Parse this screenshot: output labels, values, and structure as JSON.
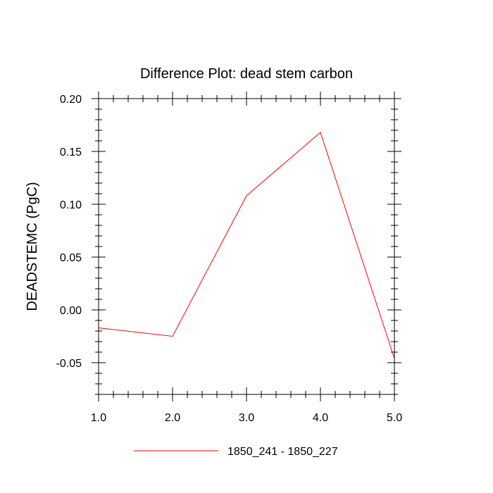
{
  "chart_data": {
    "type": "line",
    "title": "Difference Plot: dead stem carbon",
    "xlabel": "",
    "ylabel": "DEADSTEMC  (PgC)",
    "xlim": [
      1.0,
      5.0
    ],
    "ylim": [
      -0.08,
      0.2
    ],
    "x_ticks": [
      1.0,
      2.0,
      3.0,
      4.0,
      5.0
    ],
    "x_tick_labels": [
      "1.0",
      "2.0",
      "3.0",
      "4.0",
      "5.0"
    ],
    "y_ticks": [
      -0.05,
      0.0,
      0.05,
      0.1,
      0.15,
      0.2
    ],
    "y_tick_labels": [
      "-0.05",
      "0.00",
      "0.05",
      "0.10",
      "0.15",
      "0.20"
    ],
    "y_minor_step": 0.01,
    "x_minor_step": 0.2,
    "grid": false,
    "legend_position": "bottom-center",
    "series": [
      {
        "name": "1850_241 - 1850_227",
        "color": "#ff0000",
        "x": [
          1.0,
          2.0,
          3.0,
          4.0,
          5.0
        ],
        "values": [
          -0.017,
          -0.025,
          0.108,
          0.168,
          -0.046
        ]
      }
    ]
  }
}
